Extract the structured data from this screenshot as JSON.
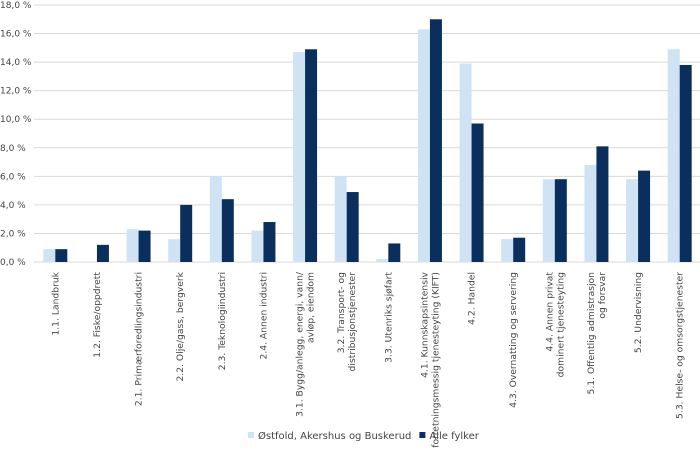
{
  "chart_data": {
    "type": "bar",
    "title": "",
    "xlabel": "",
    "ylabel": "",
    "ylim": [
      0,
      18
    ],
    "ytick_step": 2,
    "ytick_format": "comma-one-decimal-percent",
    "grid": true,
    "legend_position": "bottom",
    "categories": [
      "1.1. Landbruk",
      "1.2. Fiske/oppdrett",
      "2.1. Primærforedlingsindustri",
      "2.2. Olje/gass, bergverk",
      "2.3. Teknologiindustri",
      "2.4. Annen industri",
      "3.1. Bygg/anlegg, energi, vann/\navløp, eiendom",
      "3.2. Transport- og\ndistribusjonstjenester",
      "3.3. Utenriks sjøfart",
      "4.1. Kunnskapsintensiv\nforretningsmessig tjenesteyting (KIFT)",
      "4.2. Handel",
      "4.3. Overnatting og servering",
      "4.4. Annen privat\ndominert tjenesteyting",
      "5.1. Offentlig admistrasjon\nog forsvar",
      "5.2. Undervisning",
      "5.3. Helse- og omsorgstjenester"
    ],
    "series": [
      {
        "name": "Østfold, Akershus og Buskerud",
        "color": "#cfe3f5",
        "values": [
          0.9,
          0.0,
          2.3,
          1.6,
          6.0,
          2.2,
          14.7,
          6.0,
          0.2,
          16.3,
          13.9,
          1.6,
          5.8,
          6.8,
          5.8,
          14.9
        ]
      },
      {
        "name": "Alle fylker",
        "color": "#0b2f5c",
        "values": [
          0.9,
          1.2,
          2.2,
          4.0,
          4.4,
          2.8,
          14.9,
          4.9,
          1.3,
          17.0,
          9.7,
          1.7,
          5.8,
          8.1,
          6.4,
          13.8
        ]
      }
    ]
  }
}
